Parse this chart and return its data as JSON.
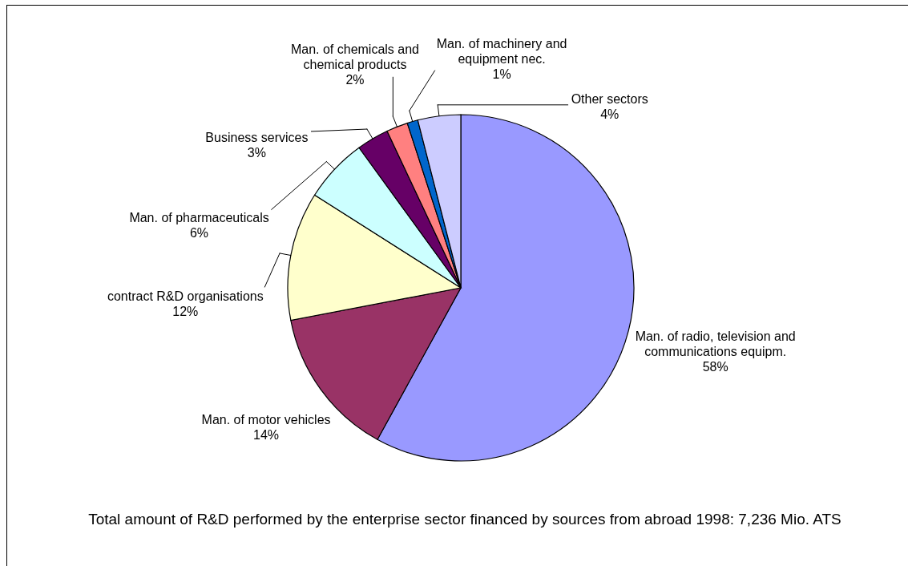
{
  "chart_data": {
    "type": "pie",
    "categories": [
      "Man. of radio, television and communications equipm.",
      "Man. of motor vehicles",
      "contract R&D organisations",
      "Man. of pharmaceuticals",
      "Business services",
      "Man. of chemicals and chemical products",
      "Man. of machinery and equipment nec.",
      "Other sectors"
    ],
    "values": [
      58,
      14,
      12,
      6,
      3,
      2,
      1,
      4
    ],
    "colors": [
      "#9999ff",
      "#993366",
      "#ffffcc",
      "#ccffff",
      "#660066",
      "#ff8080",
      "#0066cc",
      "#ccccff"
    ],
    "value_labels": [
      "58%",
      "14%",
      "12%",
      "6%",
      "3%",
      "2%",
      "1%",
      "4%"
    ],
    "annotations": [
      "Total amount of R&D performed by the enterprise sector financed by sources from abroad 1998: 7,236 Mio. ATS"
    ]
  }
}
